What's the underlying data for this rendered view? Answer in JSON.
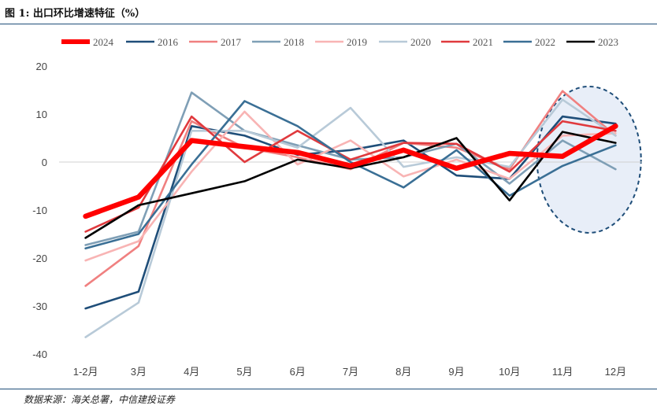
{
  "header": {
    "title": "图 1: 出口环比增速特征（%）"
  },
  "footer": {
    "source": "数据来源：海关总署，中信建投证券"
  },
  "chart_data": {
    "type": "line",
    "title": "图 1: 出口环比增速特征（%）",
    "xlabel": "",
    "ylabel": "",
    "categories": [
      "1-2月",
      "3月",
      "4月",
      "5月",
      "6月",
      "7月",
      "8月",
      "9月",
      "10月",
      "11月",
      "12月"
    ],
    "ylim": [
      -40,
      20
    ],
    "yticks": [
      20,
      10,
      0,
      -10,
      -20,
      -30,
      -40
    ],
    "legend_position": "top",
    "highlight_region": "11月-12月",
    "series": [
      {
        "name": "2024",
        "color": "#ff0000",
        "width": "thick",
        "values": [
          -11.3,
          -7.3,
          4.5,
          3.2,
          2.0,
          -0.8,
          2.5,
          -1.3,
          1.8,
          1.2,
          7.5
        ]
      },
      {
        "name": "2016",
        "color": "#1f4e79",
        "width": "normal",
        "values": [
          -30.5,
          -27.0,
          7.5,
          5.5,
          1.5,
          2.5,
          4.5,
          -2.8,
          -3.5,
          9.5,
          8.0
        ]
      },
      {
        "name": "2017",
        "color": "#f08080",
        "width": "normal",
        "values": [
          -25.8,
          -17.5,
          8.5,
          3.0,
          1.0,
          -1.5,
          4.0,
          3.0,
          -1.5,
          14.8,
          5.5
        ]
      },
      {
        "name": "2018",
        "color": "#7f9fb6",
        "width": "normal",
        "values": [
          -17.3,
          -14.5,
          14.5,
          6.5,
          3.5,
          0.5,
          1.0,
          3.8,
          -4.5,
          4.5,
          -1.5
        ]
      },
      {
        "name": "2019",
        "color": "#f8b4b4",
        "width": "normal",
        "values": [
          -20.5,
          -16.5,
          -2.0,
          10.5,
          -0.5,
          4.5,
          -3.0,
          0.5,
          -3.5,
          5.5,
          6.0
        ]
      },
      {
        "name": "2020",
        "color": "#b8cad8",
        "width": "normal",
        "values": [
          -36.5,
          -29.3,
          6.5,
          6.5,
          3.0,
          11.3,
          -1.0,
          1.0,
          -1.0,
          13.0,
          5.5
        ]
      },
      {
        "name": "2021",
        "color": "#e03a3e",
        "width": "normal",
        "values": [
          -14.5,
          -9.5,
          9.5,
          0.0,
          6.5,
          0.5,
          4.0,
          3.8,
          -2.0,
          8.5,
          6.5
        ]
      },
      {
        "name": "2022",
        "color": "#3a6f95",
        "width": "normal",
        "values": [
          -18.0,
          -15.0,
          -0.5,
          12.7,
          7.5,
          0.0,
          -5.3,
          2.5,
          -7.0,
          -0.8,
          3.5
        ]
      },
      {
        "name": "2023",
        "color": "#000000",
        "width": "normal",
        "values": [
          -15.8,
          -9.0,
          -6.5,
          -4.0,
          0.5,
          -1.3,
          1.0,
          5.0,
          -8.0,
          6.3,
          4.0
        ]
      }
    ]
  }
}
